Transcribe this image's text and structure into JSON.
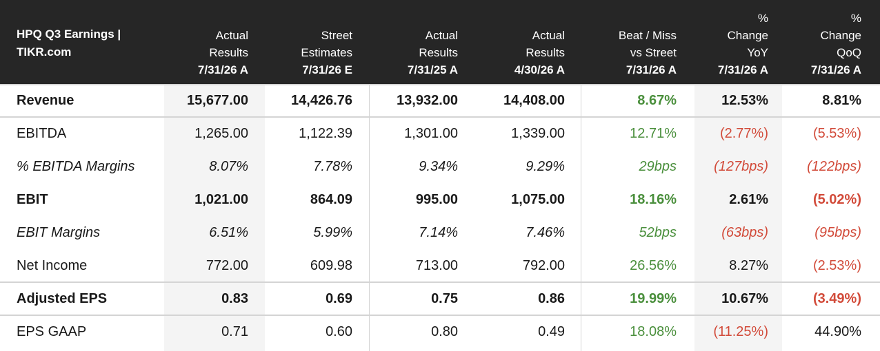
{
  "header": {
    "title_line1": "HPQ Q3 Earnings |",
    "title_line2": "TIKR.com",
    "columns": [
      {
        "line1": "",
        "line2": "Actual",
        "line3": "Results",
        "date": "7/31/26 A"
      },
      {
        "line1": "",
        "line2": "Street",
        "line3": "Estimates",
        "date": "7/31/26 E"
      },
      {
        "line1": "",
        "line2": "Actual",
        "line3": "Results",
        "date": "7/31/25 A"
      },
      {
        "line1": "",
        "line2": "Actual",
        "line3": "Results",
        "date": "4/30/26 A"
      },
      {
        "line1": "",
        "line2": "Beat / Miss",
        "line3": "vs Street",
        "date": "7/31/26 A"
      },
      {
        "line1": "%",
        "line2": "Change",
        "line3": "YoY",
        "date": "7/31/26 A"
      },
      {
        "line1": "%",
        "line2": "Change",
        "line3": "QoQ",
        "date": "7/31/26 A"
      }
    ]
  },
  "rows": [
    {
      "label": "Revenue",
      "style": "bold",
      "values": [
        "15,677.00",
        "14,426.76",
        "13,932.00",
        "14,408.00",
        "8.67%",
        "12.53%",
        "8.81%"
      ],
      "tones": [
        "",
        "",
        "",
        "",
        "pos",
        "",
        ""
      ]
    },
    {
      "label": "EBITDA",
      "style": "normal",
      "values": [
        "1,265.00",
        "1,122.39",
        "1,301.00",
        "1,339.00",
        "12.71%",
        "(2.77%)",
        "(5.53%)"
      ],
      "tones": [
        "",
        "",
        "",
        "",
        "pos",
        "neg",
        "neg"
      ]
    },
    {
      "label": "% EBITDA Margins",
      "style": "italic",
      "values": [
        "8.07%",
        "7.78%",
        "9.34%",
        "9.29%",
        "29bps",
        "(127bps)",
        "(122bps)"
      ],
      "tones": [
        "",
        "",
        "",
        "",
        "pos",
        "neg",
        "neg"
      ]
    },
    {
      "label": "EBIT",
      "style": "bold",
      "values": [
        "1,021.00",
        "864.09",
        "995.00",
        "1,075.00",
        "18.16%",
        "2.61%",
        "(5.02%)"
      ],
      "tones": [
        "",
        "",
        "",
        "",
        "pos",
        "",
        "neg"
      ]
    },
    {
      "label": "EBIT Margins",
      "style": "italic",
      "values": [
        "6.51%",
        "5.99%",
        "7.14%",
        "7.46%",
        "52bps",
        "(63bps)",
        "(95bps)"
      ],
      "tones": [
        "",
        "",
        "",
        "",
        "pos",
        "neg",
        "neg"
      ]
    },
    {
      "label": "Net Income",
      "style": "normal",
      "values": [
        "772.00",
        "609.98",
        "713.00",
        "792.00",
        "26.56%",
        "8.27%",
        "(2.53%)"
      ],
      "tones": [
        "",
        "",
        "",
        "",
        "pos",
        "",
        "neg"
      ]
    },
    {
      "label": "Adjusted EPS",
      "style": "bold",
      "values": [
        "0.83",
        "0.69",
        "0.75",
        "0.86",
        "19.99%",
        "10.67%",
        "(3.49%)"
      ],
      "tones": [
        "",
        "",
        "",
        "",
        "pos",
        "",
        "neg"
      ]
    },
    {
      "label": "EPS GAAP",
      "style": "normal",
      "values": [
        "0.71",
        "0.60",
        "0.80",
        "0.49",
        "18.08%",
        "(11.25%)",
        "44.90%"
      ],
      "tones": [
        "",
        "",
        "",
        "",
        "pos",
        "neg",
        ""
      ]
    }
  ],
  "colors": {
    "header_bg": "#262626",
    "positive": "#4a8f3c",
    "negative": "#d24b3a",
    "shaded_column": "#f4f4f4"
  }
}
